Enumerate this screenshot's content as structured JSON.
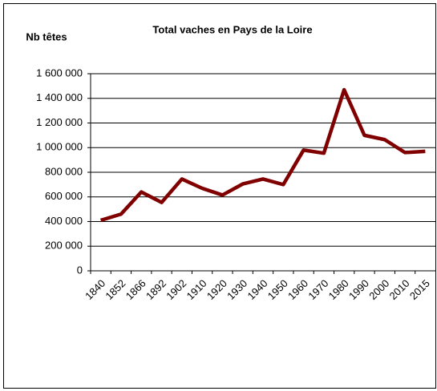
{
  "chart_data": {
    "type": "line",
    "title": "Total vaches en Pays de la Loire",
    "y_label": "Nb têtes",
    "categories": [
      "1840",
      "1852",
      "1866",
      "1892",
      "1902",
      "1910",
      "1920",
      "1930",
      "1940",
      "1950",
      "1960",
      "1970",
      "1980",
      "1990",
      "2000",
      "2010",
      "2015"
    ],
    "series": [
      {
        "name": "Total vaches",
        "color": "#800000",
        "values": [
          410000,
          460000,
          640000,
          555000,
          745000,
          670000,
          615000,
          705000,
          745000,
          700000,
          980000,
          955000,
          1470000,
          1100000,
          1065000,
          960000,
          970000
        ]
      }
    ],
    "ylim": [
      0,
      1600000
    ],
    "yticks": [
      0,
      {
        "value": 200000,
        "label": "200 000"
      },
      {
        "value": 400000,
        "label": "400 000"
      },
      {
        "value": 600000,
        "label": "600 000"
      },
      {
        "value": 800000,
        "label": "800 000"
      },
      {
        "value": 1000000,
        "label": "1 000 000"
      },
      {
        "value": 1200000,
        "label": "1 200 000"
      },
      {
        "value": 1400000,
        "label": "1 400 000"
      },
      {
        "value": 1600000,
        "label": "1 600 000"
      }
    ],
    "grid": true
  }
}
